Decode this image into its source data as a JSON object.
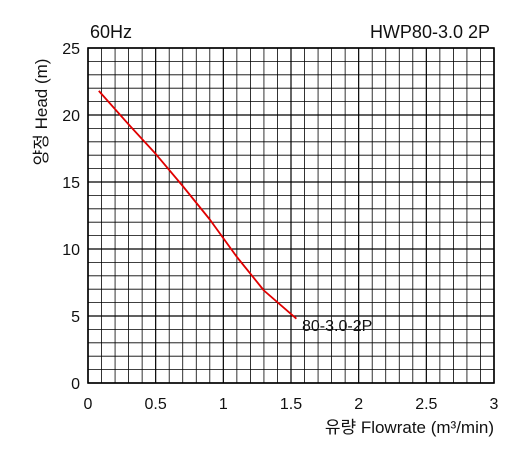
{
  "chart_data": {
    "type": "line",
    "header_left": "60Hz",
    "header_right": "HWP80-3.0 2P",
    "xlabel": "유량 Flowrate (m³/min)",
    "ylabel": "양정 Head (m)",
    "xlim": [
      0,
      3
    ],
    "ylim": [
      0,
      25
    ],
    "x_ticks": [
      0,
      0.5,
      1,
      1.5,
      2,
      2.5,
      3
    ],
    "x_tick_labels": [
      "0",
      "0.5",
      "1",
      "1.5",
      "2",
      "2.5",
      "3"
    ],
    "y_ticks": [
      0,
      5,
      10,
      15,
      20,
      25
    ],
    "y_tick_labels": [
      "0",
      "5",
      "10",
      "15",
      "20",
      "25"
    ],
    "x_minor_step": 0.1,
    "y_minor_step": 1,
    "grid": true,
    "series": [
      {
        "name": "80-3.0-2P",
        "color": "#e00000",
        "x": [
          0.08,
          0.3,
          0.5,
          0.7,
          0.9,
          1.1,
          1.3,
          1.54
        ],
        "y": [
          21.8,
          19.3,
          17.1,
          14.7,
          12.2,
          9.4,
          6.9,
          4.8
        ]
      }
    ],
    "curve_label": "80-3.0-2P"
  }
}
